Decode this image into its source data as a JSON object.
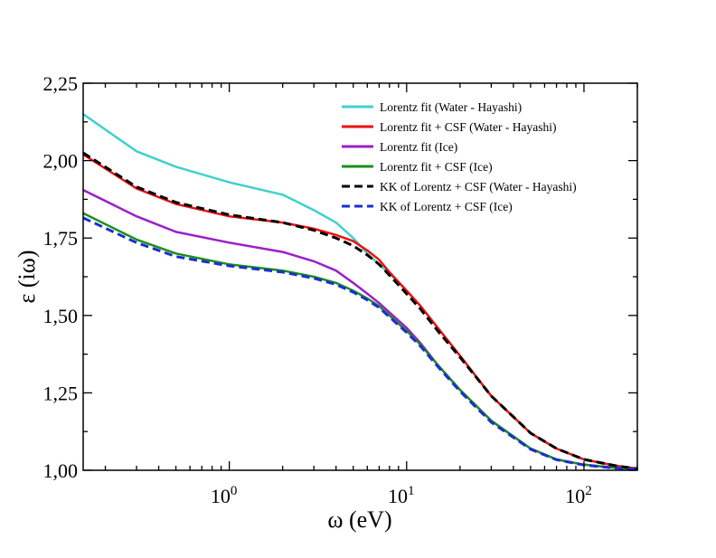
{
  "chart_data": {
    "type": "line",
    "title": "",
    "xlabel": "ω (eV)",
    "ylabel": "ε (iω)",
    "xscale": "log",
    "xlim": [
      0.15,
      200
    ],
    "ylim": [
      1.0,
      2.25
    ],
    "grid": false,
    "legend_position": "top-right",
    "yticks": [
      {
        "value": 1.0,
        "label": "1,00"
      },
      {
        "value": 1.25,
        "label": "1,25"
      },
      {
        "value": 1.5,
        "label": "1,50"
      },
      {
        "value": 1.75,
        "label": "1,75"
      },
      {
        "value": 2.0,
        "label": "2,00"
      },
      {
        "value": 2.25,
        "label": "2,25"
      }
    ],
    "xticks": [
      {
        "value": 1,
        "base": "10",
        "exp": "0"
      },
      {
        "value": 10,
        "base": "10",
        "exp": "1"
      },
      {
        "value": 100,
        "base": "10",
        "exp": "2"
      }
    ],
    "series": [
      {
        "name": "Lorentz fit (Water - Hayashi)",
        "color": "#40d0d0",
        "dash": "solid",
        "x": [
          0.15,
          0.3,
          0.5,
          1,
          2,
          3,
          4,
          5,
          6,
          7,
          8,
          10,
          12,
          15,
          20,
          30,
          50,
          70,
          100,
          150,
          200
        ],
        "y": [
          2.15,
          2.03,
          1.98,
          1.93,
          1.89,
          1.84,
          1.8,
          1.75,
          1.7,
          1.665,
          1.635,
          1.58,
          1.53,
          1.46,
          1.37,
          1.24,
          1.12,
          1.07,
          1.035,
          1.015,
          1.005
        ]
      },
      {
        "name": "Lorentz fit + CSF (Water - Hayashi)",
        "color": "#ee1111",
        "dash": "solid",
        "x": [
          0.15,
          0.3,
          0.5,
          1,
          2,
          3,
          4,
          5,
          6,
          7,
          8,
          10,
          12,
          15,
          20,
          30,
          50,
          70,
          100,
          150,
          200
        ],
        "y": [
          2.02,
          1.91,
          1.86,
          1.82,
          1.8,
          1.78,
          1.76,
          1.74,
          1.71,
          1.68,
          1.64,
          1.58,
          1.53,
          1.46,
          1.37,
          1.24,
          1.12,
          1.07,
          1.035,
          1.015,
          1.005
        ]
      },
      {
        "name": "Lorentz fit (Ice)",
        "color": "#9a1fc9",
        "dash": "solid",
        "x": [
          0.15,
          0.3,
          0.5,
          1,
          2,
          3,
          4,
          5,
          6,
          7,
          8,
          10,
          12,
          15,
          20,
          30,
          50,
          70,
          100,
          150,
          200
        ],
        "y": [
          1.905,
          1.82,
          1.77,
          1.735,
          1.705,
          1.675,
          1.645,
          1.605,
          1.57,
          1.54,
          1.51,
          1.46,
          1.41,
          1.34,
          1.26,
          1.16,
          1.07,
          1.035,
          1.018,
          1.008,
          1.003
        ]
      },
      {
        "name": "Lorentz fit + CSF (Ice)",
        "color": "#1a8f1a",
        "dash": "solid",
        "x": [
          0.15,
          0.3,
          0.5,
          1,
          2,
          3,
          4,
          5,
          6,
          7,
          8,
          10,
          12,
          15,
          20,
          30,
          50,
          70,
          100,
          150,
          200
        ],
        "y": [
          1.83,
          1.745,
          1.7,
          1.665,
          1.645,
          1.625,
          1.605,
          1.58,
          1.555,
          1.53,
          1.5,
          1.45,
          1.405,
          1.34,
          1.26,
          1.16,
          1.07,
          1.035,
          1.018,
          1.008,
          1.003
        ]
      },
      {
        "name": "KK of Lorentz + CSF (Water - Hayashi)",
        "color": "#000000",
        "dash": "dashed",
        "x": [
          0.15,
          0.3,
          0.5,
          1,
          2,
          3,
          4,
          5,
          6,
          7,
          8,
          10,
          12,
          15,
          20,
          30,
          50,
          70,
          100,
          150,
          200
        ],
        "y": [
          2.025,
          1.915,
          1.865,
          1.825,
          1.8,
          1.775,
          1.75,
          1.725,
          1.695,
          1.665,
          1.63,
          1.57,
          1.52,
          1.45,
          1.365,
          1.24,
          1.12,
          1.07,
          1.035,
          1.015,
          1.005
        ]
      },
      {
        "name": "KK of Lorentz + CSF (Ice)",
        "color": "#1a2fd0",
        "dash": "dashed",
        "x": [
          0.15,
          0.3,
          0.5,
          1,
          2,
          3,
          4,
          5,
          6,
          7,
          8,
          10,
          12,
          15,
          20,
          30,
          50,
          70,
          100,
          150,
          200
        ],
        "y": [
          1.815,
          1.735,
          1.69,
          1.66,
          1.64,
          1.62,
          1.6,
          1.575,
          1.55,
          1.525,
          1.495,
          1.445,
          1.4,
          1.335,
          1.255,
          1.155,
          1.068,
          1.034,
          1.017,
          1.007,
          1.003
        ]
      }
    ]
  }
}
